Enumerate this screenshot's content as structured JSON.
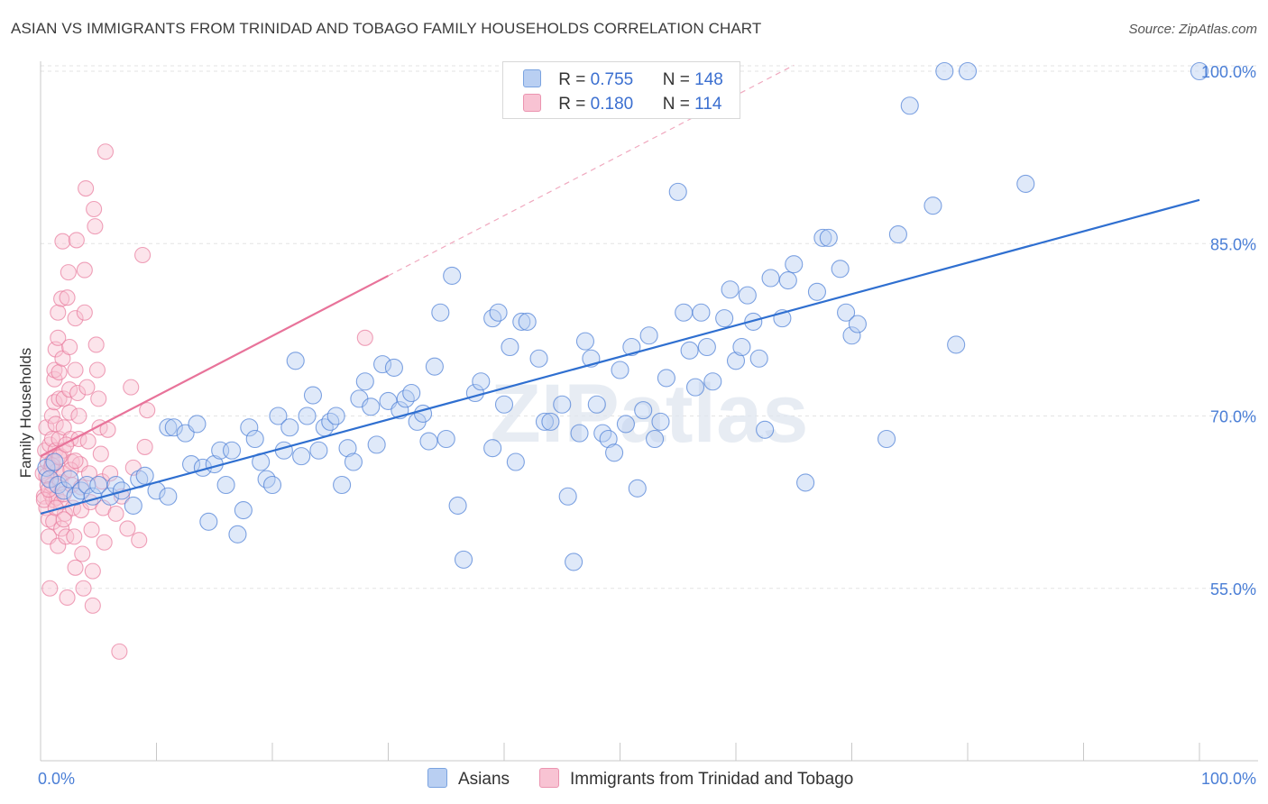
{
  "title": "ASIAN VS IMMIGRANTS FROM TRINIDAD AND TOBAGO FAMILY HOUSEHOLDS CORRELATION CHART",
  "source": "Source: ZipAtlas.com",
  "watermark": "ZIPatlas",
  "colors": {
    "blue": "#4a7ed6",
    "blue_fill": "#b9cff2",
    "blue_line": "#2f6fd0",
    "pink": "#e87a9c",
    "pink_fill": "#f8c3d3",
    "pink_line": "#e8739a"
  },
  "legend": {
    "rows": [
      {
        "r_label": "R = ",
        "r_value": "0.755",
        "n_label": "N = ",
        "n_value": "148"
      },
      {
        "r_label": "R = ",
        "r_value": "0.180",
        "n_label": "N = ",
        "n_value": "114"
      }
    ]
  },
  "bottom_legend": [
    "Asians",
    "Immigrants from Trinidad and Tobago"
  ],
  "chart_data": {
    "type": "scatter",
    "title": "ASIAN VS IMMIGRANTS FROM TRINIDAD AND TOBAGO FAMILY HOUSEHOLDS CORRELATION CHART",
    "xlabel": "",
    "ylabel": "Family Households",
    "xlim": [
      0,
      100
    ],
    "ylim": [
      40,
      100
    ],
    "x_tick_labels": [
      "0.0%",
      "100.0%"
    ],
    "y_tick_labels": [
      "55.0%",
      "70.0%",
      "85.0%",
      "100.0%"
    ],
    "y_ticks": [
      55,
      70,
      85,
      100
    ],
    "grid": true,
    "legend_position": "top-center",
    "series": [
      {
        "name": "Asians",
        "R": 0.755,
        "N": 148,
        "trend": {
          "x": [
            0,
            100
          ],
          "y": [
            61.5,
            88.8
          ]
        },
        "points": [
          [
            0.5,
            65.5
          ],
          [
            0.8,
            64.5
          ],
          [
            1.2,
            66
          ],
          [
            1.5,
            64
          ],
          [
            2,
            63.5
          ],
          [
            2.5,
            64.5
          ],
          [
            3,
            63
          ],
          [
            3.5,
            63.5
          ],
          [
            4,
            64
          ],
          [
            4.5,
            63
          ],
          [
            5,
            64
          ],
          [
            6,
            63
          ],
          [
            6.5,
            64
          ],
          [
            7,
            63.5
          ],
          [
            8,
            62.2
          ],
          [
            8.5,
            64.5
          ],
          [
            9,
            64.8
          ],
          [
            10,
            63.5
          ],
          [
            11,
            63
          ],
          [
            11,
            69
          ],
          [
            11.5,
            69
          ],
          [
            12.5,
            68.5
          ],
          [
            13,
            65.8
          ],
          [
            13.5,
            69.3
          ],
          [
            14,
            65.5
          ],
          [
            14.5,
            60.8
          ],
          [
            15,
            65.8
          ],
          [
            15.5,
            67
          ],
          [
            16,
            64
          ],
          [
            16.5,
            67
          ],
          [
            17,
            59.7
          ],
          [
            17.5,
            61.8
          ],
          [
            18,
            69
          ],
          [
            18.5,
            68
          ],
          [
            19,
            66
          ],
          [
            19.5,
            64.5
          ],
          [
            20,
            64
          ],
          [
            20.5,
            70
          ],
          [
            21,
            67
          ],
          [
            21.5,
            69
          ],
          [
            22,
            74.8
          ],
          [
            22.5,
            66.5
          ],
          [
            23,
            70
          ],
          [
            23.5,
            71.8
          ],
          [
            24,
            67
          ],
          [
            24.5,
            69
          ],
          [
            25,
            69.5
          ],
          [
            25.5,
            70
          ],
          [
            26,
            64
          ],
          [
            26.5,
            67.2
          ],
          [
            27,
            66
          ],
          [
            27.5,
            71.5
          ],
          [
            28,
            73
          ],
          [
            28.5,
            70.8
          ],
          [
            29,
            67.5
          ],
          [
            29.5,
            74.5
          ],
          [
            30,
            71.3
          ],
          [
            30.5,
            74.2
          ],
          [
            31,
            70.5
          ],
          [
            31.5,
            71.5
          ],
          [
            32,
            72
          ],
          [
            32.5,
            69.5
          ],
          [
            33,
            70.2
          ],
          [
            33.5,
            67.8
          ],
          [
            34,
            74.3
          ],
          [
            34.5,
            79
          ],
          [
            35,
            68
          ],
          [
            35.5,
            82.2
          ],
          [
            36,
            62.2
          ],
          [
            36.5,
            57.5
          ],
          [
            37.5,
            72
          ],
          [
            38,
            73
          ],
          [
            39,
            78.5
          ],
          [
            39,
            67.2
          ],
          [
            39.5,
            79
          ],
          [
            40,
            71
          ],
          [
            40.5,
            76
          ],
          [
            41,
            66
          ],
          [
            41.5,
            78.2
          ],
          [
            42,
            78.2
          ],
          [
            43,
            75
          ],
          [
            43.5,
            69.5
          ],
          [
            44,
            69.5
          ],
          [
            45,
            71
          ],
          [
            45.5,
            63
          ],
          [
            46,
            57.3
          ],
          [
            46.5,
            68.5
          ],
          [
            47,
            76.5
          ],
          [
            47.5,
            75
          ],
          [
            48,
            71
          ],
          [
            48.5,
            68.5
          ],
          [
            49,
            68
          ],
          [
            49.5,
            66.8
          ],
          [
            50,
            74
          ],
          [
            50.5,
            69.3
          ],
          [
            51,
            76
          ],
          [
            51.5,
            63.7
          ],
          [
            52,
            70.5
          ],
          [
            52.5,
            77
          ],
          [
            53,
            68
          ],
          [
            53.5,
            69.5
          ],
          [
            54,
            73.3
          ],
          [
            55,
            89.5
          ],
          [
            55.5,
            79
          ],
          [
            56,
            75.7
          ],
          [
            56.5,
            72.5
          ],
          [
            57,
            79
          ],
          [
            57.5,
            76
          ],
          [
            58,
            73
          ],
          [
            59,
            78.5
          ],
          [
            59.5,
            81
          ],
          [
            60,
            74.8
          ],
          [
            60.5,
            76
          ],
          [
            61,
            80.5
          ],
          [
            61.5,
            78.2
          ],
          [
            62,
            75
          ],
          [
            62.5,
            68.8
          ],
          [
            63,
            82
          ],
          [
            64,
            78.5
          ],
          [
            64.5,
            81.8
          ],
          [
            65,
            83.2
          ],
          [
            66,
            64.2
          ],
          [
            67,
            80.8
          ],
          [
            67.5,
            85.5
          ],
          [
            68,
            85.5
          ],
          [
            69,
            82.8
          ],
          [
            69.5,
            79
          ],
          [
            70,
            77
          ],
          [
            70.5,
            78
          ],
          [
            73,
            68
          ],
          [
            74,
            85.8
          ],
          [
            75,
            97
          ],
          [
            77,
            88.3
          ],
          [
            78,
            100
          ],
          [
            79,
            76.2
          ],
          [
            80,
            100
          ],
          [
            85,
            90.2
          ],
          [
            100,
            100
          ]
        ]
      },
      {
        "name": "Immigrants from Trinidad and Tobago",
        "R": 0.18,
        "N": 114,
        "trend": {
          "x": [
            0,
            30
          ],
          "y": [
            66.5,
            82.2
          ]
        },
        "points": [
          [
            0.2,
            65
          ],
          [
            0.3,
            63
          ],
          [
            0.4,
            67
          ],
          [
            0.5,
            62
          ],
          [
            0.5,
            69
          ],
          [
            0.6,
            66
          ],
          [
            0.6,
            64
          ],
          [
            0.7,
            61
          ],
          [
            0.7,
            59.5
          ],
          [
            0.8,
            55
          ],
          [
            0.8,
            67.5
          ],
          [
            0.9,
            65.5
          ],
          [
            0.9,
            63.2
          ],
          [
            1,
            70
          ],
          [
            1,
            68
          ],
          [
            1,
            66
          ],
          [
            1,
            64
          ],
          [
            1.1,
            62.7
          ],
          [
            1.1,
            60.8
          ],
          [
            1.2,
            73.2
          ],
          [
            1.2,
            74
          ],
          [
            1.2,
            71.2
          ],
          [
            1.3,
            75.8
          ],
          [
            1.3,
            69.3
          ],
          [
            1.3,
            67
          ],
          [
            1.4,
            65.2
          ],
          [
            1.4,
            62.9
          ],
          [
            1.5,
            58.7
          ],
          [
            1.5,
            76.8
          ],
          [
            1.5,
            79
          ],
          [
            1.6,
            71.5
          ],
          [
            1.6,
            73.8
          ],
          [
            1.6,
            68
          ],
          [
            1.7,
            66.5
          ],
          [
            1.7,
            64.2
          ],
          [
            1.8,
            62.5
          ],
          [
            1.8,
            60.2
          ],
          [
            1.8,
            80.2
          ],
          [
            1.9,
            85.2
          ],
          [
            1.9,
            75
          ],
          [
            2,
            71.5
          ],
          [
            2,
            69
          ],
          [
            2,
            67
          ],
          [
            2,
            65
          ],
          [
            2,
            63.2
          ],
          [
            2.1,
            61.5
          ],
          [
            2.2,
            59.5
          ],
          [
            2.3,
            54.2
          ],
          [
            2.3,
            80.3
          ],
          [
            2.4,
            82.5
          ],
          [
            2.5,
            76
          ],
          [
            2.5,
            72.3
          ],
          [
            2.5,
            70.3
          ],
          [
            2.6,
            68
          ],
          [
            2.7,
            66
          ],
          [
            2.7,
            64
          ],
          [
            2.8,
            62
          ],
          [
            2.9,
            59.5
          ],
          [
            3,
            56.8
          ],
          [
            3,
            74
          ],
          [
            3,
            78.5
          ],
          [
            3.1,
            85.3
          ],
          [
            3.2,
            72
          ],
          [
            3.3,
            70
          ],
          [
            3.3,
            68
          ],
          [
            3.4,
            65.8
          ],
          [
            3.5,
            63.8
          ],
          [
            3.5,
            61.8
          ],
          [
            3.6,
            58
          ],
          [
            3.7,
            55
          ],
          [
            3.8,
            79
          ],
          [
            3.8,
            82.7
          ],
          [
            3.9,
            89.8
          ],
          [
            4,
            72.5
          ],
          [
            4.1,
            67.8
          ],
          [
            4.2,
            65
          ],
          [
            4.3,
            62.5
          ],
          [
            4.4,
            60.1
          ],
          [
            4.5,
            56.5
          ],
          [
            4.5,
            53.5
          ],
          [
            4.6,
            88
          ],
          [
            4.7,
            86.5
          ],
          [
            4.8,
            76.2
          ],
          [
            4.9,
            74
          ],
          [
            5,
            71.5
          ],
          [
            5.1,
            69
          ],
          [
            5.2,
            66.7
          ],
          [
            5.3,
            64.3
          ],
          [
            5.4,
            62
          ],
          [
            5.5,
            59
          ],
          [
            5.6,
            93
          ],
          [
            5.8,
            68.8
          ],
          [
            6,
            65
          ],
          [
            6.5,
            61.5
          ],
          [
            6.8,
            49.5
          ],
          [
            7,
            63
          ],
          [
            7.5,
            60.2
          ],
          [
            7.8,
            72.5
          ],
          [
            8,
            65.5
          ],
          [
            8.5,
            59.2
          ],
          [
            8.8,
            84
          ],
          [
            9,
            67.3
          ],
          [
            9.2,
            70.5
          ],
          [
            0.3,
            62.7
          ],
          [
            0.5,
            64.8
          ],
          [
            0.7,
            63.6
          ],
          [
            1,
            65.7
          ],
          [
            1.3,
            62
          ],
          [
            1.6,
            66.4
          ],
          [
            2,
            61
          ],
          [
            2.2,
            67.5
          ],
          [
            2.6,
            65.3
          ],
          [
            3,
            66.1
          ],
          [
            28,
            76.8
          ]
        ]
      }
    ]
  }
}
